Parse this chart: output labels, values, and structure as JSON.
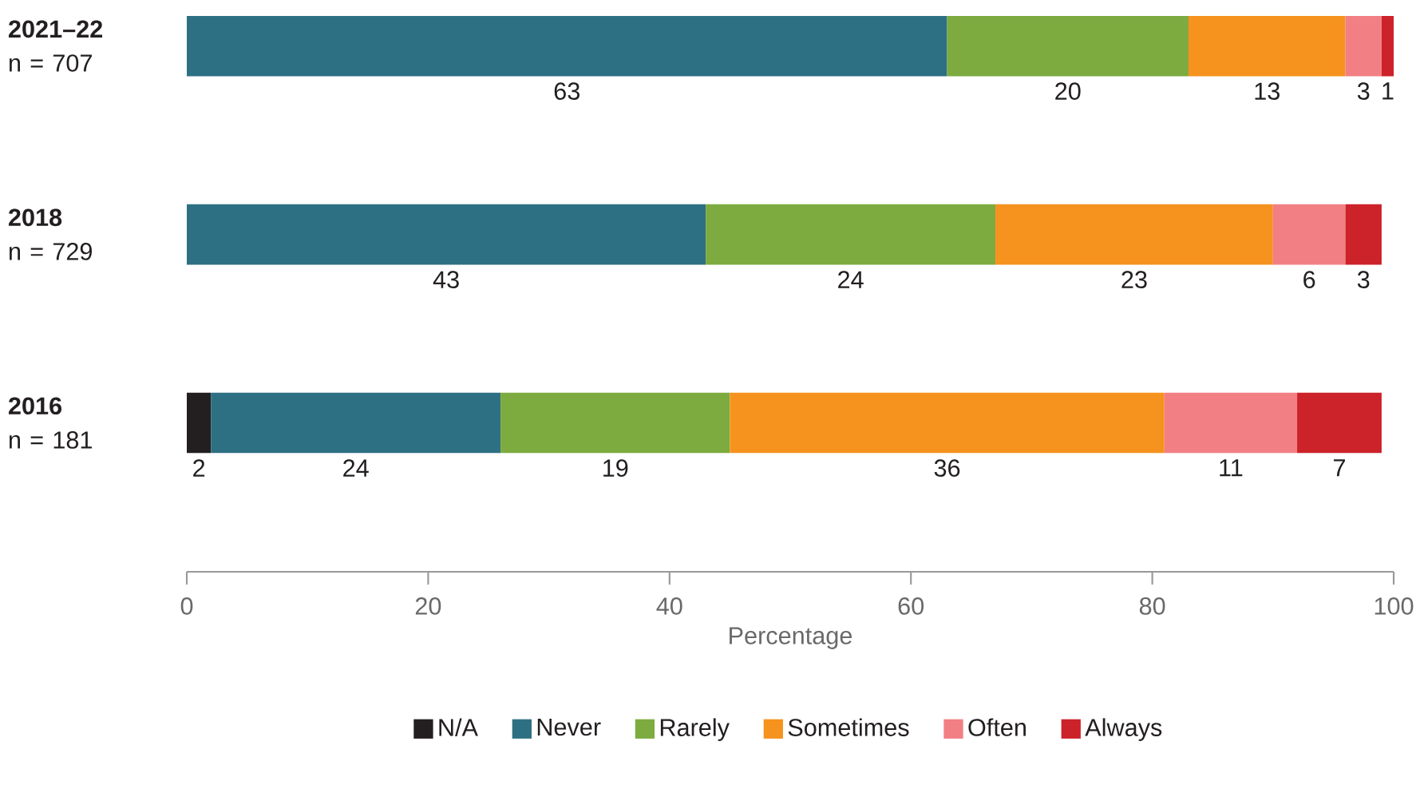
{
  "chart_data": {
    "type": "bar",
    "orientation": "horizontal",
    "stacked": true,
    "data_labels": true,
    "legend": "bottom",
    "categories": [
      "**2021–22** n = 707",
      "**2018** n = 729",
      "**2016** n = 181"
    ],
    "xlabel": "Percentage",
    "xlim": [
      0,
      100
    ],
    "xticks": [
      0,
      20,
      40,
      60,
      80,
      100
    ],
    "series": [
      {
        "name": "N/A",
        "color": "#231f20",
        "values": [
          null,
          null,
          2
        ]
      },
      {
        "name": "Never",
        "color": "#2e7083",
        "values": [
          63,
          43,
          24
        ]
      },
      {
        "name": "Rarely",
        "color": "#7dab3f",
        "values": [
          20,
          24,
          19
        ]
      },
      {
        "name": "Sometimes",
        "color": "#f6921e",
        "values": [
          13,
          23,
          36
        ]
      },
      {
        "name": "Often",
        "color": "#f27f84",
        "values": [
          3,
          6,
          11
        ]
      },
      {
        "name": "Always",
        "color": "#cc2229",
        "values": [
          1,
          3,
          7
        ]
      }
    ]
  }
}
